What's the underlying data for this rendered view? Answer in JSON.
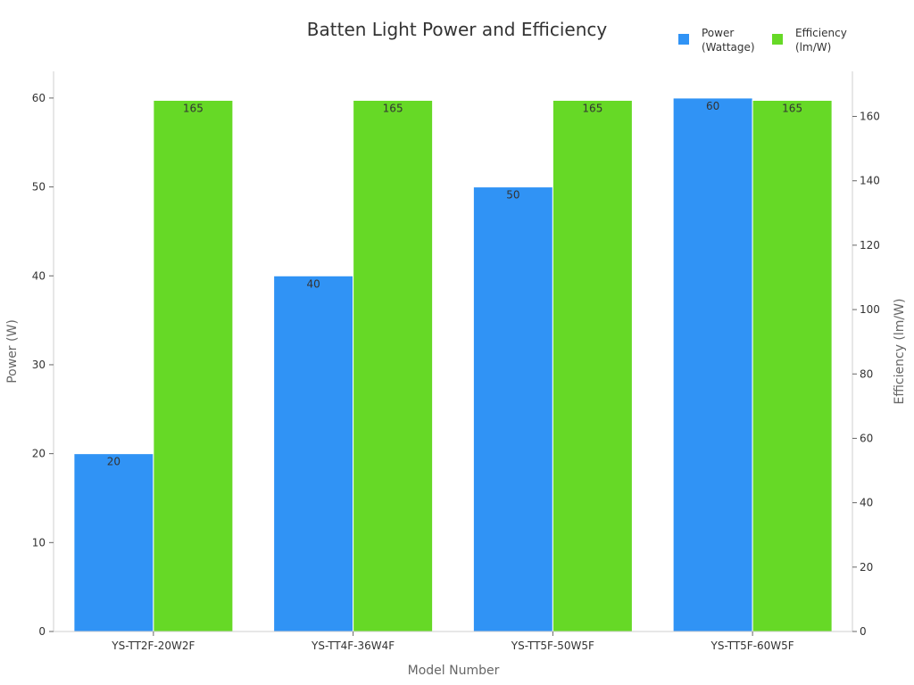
{
  "chart_data": {
    "type": "bar",
    "title": "Batten Light Power and Efficiency",
    "xlabel": "Model Number",
    "ylabel": "Power (W)",
    "y2label": "Efficiency (lm/W)",
    "categories": [
      "YS-TT2F-20W2F",
      "YS-TT4F-36W4F",
      "YS-TT5F-50W5F",
      "YS-TT5F-60W5F"
    ],
    "series": [
      {
        "name": "Power (Wattage)",
        "axis": "left",
        "color": "#3093f5",
        "values": [
          20,
          40,
          50,
          60
        ]
      },
      {
        "name": "Efficiency (lm/W)",
        "axis": "right",
        "color": "#66d926",
        "values": [
          165,
          165,
          165,
          165
        ]
      }
    ],
    "ylim": [
      0,
      63
    ],
    "y2lim": [
      0,
      174
    ],
    "yticks": [
      0,
      10,
      20,
      30,
      40,
      50,
      60
    ],
    "y2ticks": [
      0,
      20,
      40,
      60,
      80,
      100,
      120,
      140,
      160
    ],
    "legend": {
      "position": "top-right",
      "entries": [
        {
          "lines": [
            "Power",
            "(Wattage)"
          ],
          "color": "#3093f5"
        },
        {
          "lines": [
            "Efficiency",
            "(lm/W)"
          ],
          "color": "#66d926"
        }
      ]
    },
    "grid": false
  }
}
